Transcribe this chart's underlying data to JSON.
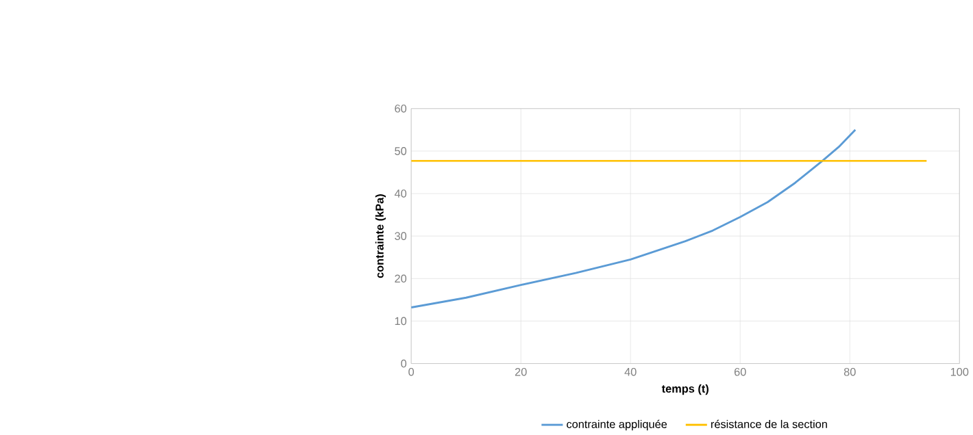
{
  "chart_data": {
    "type": "line",
    "xlabel": "temps (t)",
    "ylabel": "contrainte (kPa)",
    "xlim": [
      0,
      100
    ],
    "xticks": [
      0,
      20,
      40,
      60,
      80,
      100
    ],
    "ylim": [
      0,
      60
    ],
    "yticks": [
      0,
      10,
      20,
      30,
      40,
      50,
      60
    ],
    "grid": true,
    "legend": "bottom",
    "marker": "none",
    "line_style": "solid",
    "series": [
      {
        "name": "contrainte appliquée",
        "color": "#5b9bd5",
        "x": [
          0,
          10,
          20,
          30,
          40,
          50,
          55,
          60,
          65,
          70,
          75,
          78,
          81
        ],
        "values": [
          13.2,
          15.5,
          18.5,
          21.3,
          24.5,
          28.8,
          31.3,
          34.5,
          38,
          42.5,
          47.7,
          51,
          55
        ]
      },
      {
        "name": "résistance de la section",
        "color": "#ffc000",
        "x": [
          0,
          94
        ],
        "values": [
          47.7,
          47.7
        ]
      }
    ]
  }
}
